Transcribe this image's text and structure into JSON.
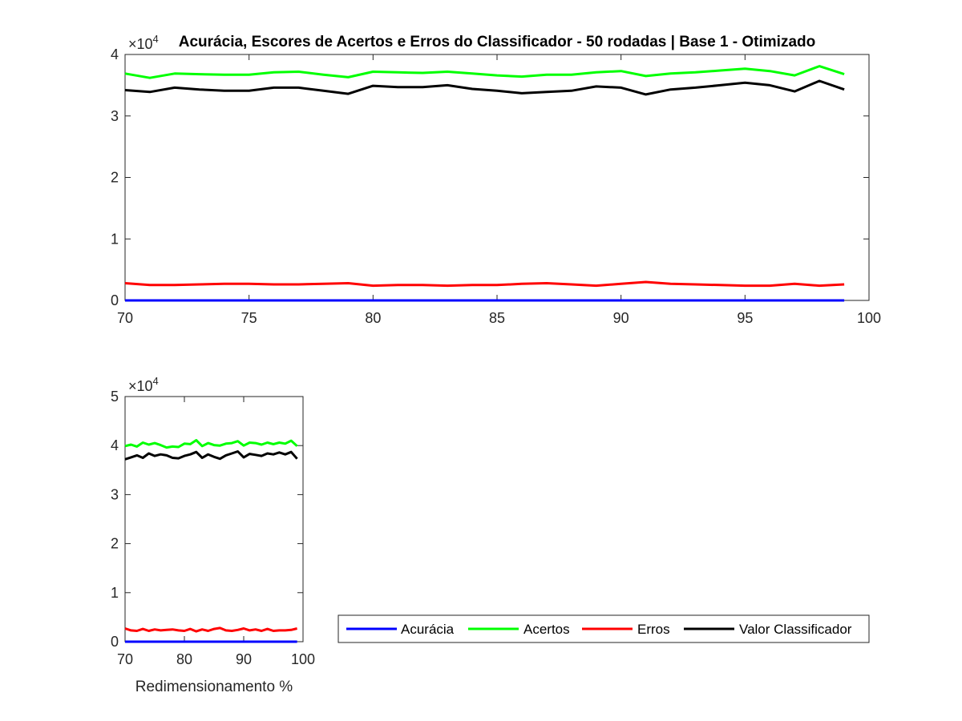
{
  "chart_data": [
    {
      "type": "line",
      "title": "Acurácia, Escores de Acertos e Erros do Classificador - 50 rodadas | Base 1 - Otimizado",
      "xlabel": "",
      "ylabel": "",
      "exponent_label": "×10",
      "exponent_power": "4",
      "xlim": [
        70,
        100
      ],
      "ylim": [
        0,
        4
      ],
      "xticks": [
        "70",
        "75",
        "80",
        "85",
        "90",
        "95",
        "100"
      ],
      "yticks": [
        "0",
        "1",
        "2",
        "3",
        "4"
      ],
      "x": [
        70,
        71,
        72,
        73,
        74,
        75,
        76,
        77,
        78,
        79,
        80,
        81,
        82,
        83,
        84,
        85,
        86,
        87,
        88,
        89,
        90,
        91,
        92,
        93,
        94,
        95,
        96,
        97,
        98,
        99
      ],
      "series": [
        {
          "name": "Acurácia",
          "color": "#0000ff",
          "values": [
            0.0001,
            0.0001,
            0.0001,
            0.0001,
            0.0001,
            0.0001,
            0.0001,
            0.0001,
            0.0001,
            0.0001,
            0.0001,
            0.0001,
            0.0001,
            0.0001,
            0.0001,
            0.0001,
            0.0001,
            0.0001,
            0.0001,
            0.0001,
            0.0001,
            0.0001,
            0.0001,
            0.0001,
            0.0001,
            0.0001,
            0.0001,
            0.0001,
            0.0001,
            0.0001
          ]
        },
        {
          "name": "Acertos",
          "color": "#00ff00",
          "values": [
            3.69,
            3.62,
            3.69,
            3.68,
            3.67,
            3.67,
            3.71,
            3.72,
            3.67,
            3.63,
            3.72,
            3.71,
            3.7,
            3.72,
            3.69,
            3.66,
            3.64,
            3.67,
            3.67,
            3.71,
            3.73,
            3.65,
            3.69,
            3.71,
            3.74,
            3.77,
            3.73,
            3.66,
            3.81,
            3.68
          ]
        },
        {
          "name": "Erros",
          "color": "#ff0000",
          "values": [
            0.28,
            0.25,
            0.25,
            0.26,
            0.27,
            0.27,
            0.26,
            0.26,
            0.27,
            0.28,
            0.24,
            0.25,
            0.25,
            0.24,
            0.25,
            0.25,
            0.27,
            0.28,
            0.26,
            0.24,
            0.27,
            0.3,
            0.27,
            0.26,
            0.25,
            0.24,
            0.24,
            0.27,
            0.24,
            0.26
          ]
        },
        {
          "name": "Valor Classificador",
          "color": "#000000",
          "values": [
            3.42,
            3.39,
            3.46,
            3.43,
            3.41,
            3.41,
            3.46,
            3.46,
            3.41,
            3.36,
            3.49,
            3.47,
            3.47,
            3.5,
            3.44,
            3.41,
            3.37,
            3.39,
            3.41,
            3.48,
            3.46,
            3.35,
            3.43,
            3.46,
            3.5,
            3.54,
            3.5,
            3.4,
            3.57,
            3.43
          ]
        }
      ]
    },
    {
      "type": "line",
      "title": "",
      "xlabel": "Redimensionamento %",
      "ylabel": "",
      "exponent_label": "×10",
      "exponent_power": "4",
      "xlim": [
        70,
        100
      ],
      "ylim": [
        0,
        5
      ],
      "xticks": [
        "70",
        "80",
        "90",
        "100"
      ],
      "yticks": [
        "0",
        "1",
        "2",
        "3",
        "4",
        "5"
      ],
      "x": [
        70,
        71,
        72,
        73,
        74,
        75,
        76,
        77,
        78,
        79,
        80,
        81,
        82,
        83,
        84,
        85,
        86,
        87,
        88,
        89,
        90,
        91,
        92,
        93,
        94,
        95,
        96,
        97,
        98,
        99
      ],
      "series": [
        {
          "name": "Acurácia",
          "color": "#0000ff",
          "values": [
            0.0001,
            0.0001,
            0.0001,
            0.0001,
            0.0001,
            0.0001,
            0.0001,
            0.0001,
            0.0001,
            0.0001,
            0.0001,
            0.0001,
            0.0001,
            0.0001,
            0.0001,
            0.0001,
            0.0001,
            0.0001,
            0.0001,
            0.0001,
            0.0001,
            0.0001,
            0.0001,
            0.0001,
            0.0001,
            0.0001,
            0.0001,
            0.0001,
            0.0001,
            0.0001
          ]
        },
        {
          "name": "Acertos",
          "color": "#00ff00",
          "values": [
            3.99,
            4.02,
            3.98,
            4.06,
            4.02,
            4.05,
            4.01,
            3.96,
            3.98,
            3.97,
            4.04,
            4.03,
            4.11,
            3.99,
            4.05,
            4.01,
            4.0,
            4.04,
            4.05,
            4.09,
            4.0,
            4.06,
            4.05,
            4.02,
            4.06,
            4.03,
            4.06,
            4.04,
            4.1,
            3.99
          ]
        },
        {
          "name": "Erros",
          "color": "#ff0000",
          "values": [
            0.27,
            0.23,
            0.22,
            0.26,
            0.22,
            0.25,
            0.23,
            0.24,
            0.25,
            0.23,
            0.22,
            0.26,
            0.21,
            0.25,
            0.22,
            0.26,
            0.28,
            0.23,
            0.22,
            0.24,
            0.27,
            0.23,
            0.25,
            0.22,
            0.26,
            0.22,
            0.23,
            0.23,
            0.24,
            0.27
          ]
        },
        {
          "name": "Valor Classificador",
          "color": "#000000",
          "values": [
            3.72,
            3.76,
            3.8,
            3.75,
            3.84,
            3.79,
            3.82,
            3.8,
            3.75,
            3.74,
            3.79,
            3.82,
            3.87,
            3.75,
            3.82,
            3.77,
            3.73,
            3.8,
            3.84,
            3.88,
            3.76,
            3.83,
            3.81,
            3.79,
            3.84,
            3.82,
            3.86,
            3.82,
            3.87,
            3.73
          ]
        }
      ]
    }
  ],
  "legend": {
    "placement": "bottom-right",
    "entries": [
      {
        "label": "Acurácia",
        "color": "#0000ff"
      },
      {
        "label": "Acertos",
        "color": "#00ff00"
      },
      {
        "label": "Erros",
        "color": "#ff0000"
      },
      {
        "label": "Valor Classificador",
        "color": "#000000"
      }
    ]
  }
}
